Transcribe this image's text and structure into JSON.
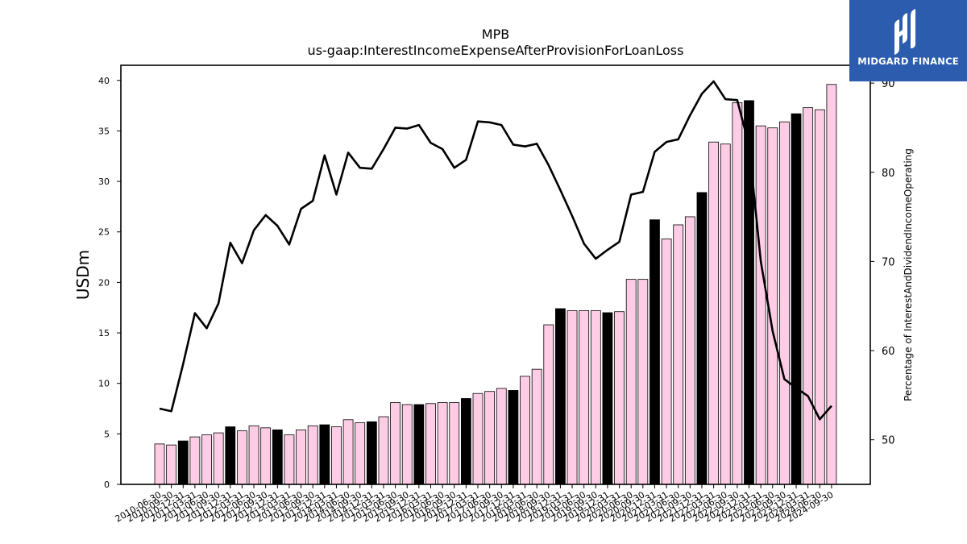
{
  "chart_data": {
    "type": "bar+line",
    "title": "MPB",
    "subtitle": "us-gaap:InterestIncomeExpenseAfterProvisionForLoanLoss",
    "ylabel": "USDm",
    "y2label": "Percentage of InterestAndDividendIncomeOperating",
    "ylim": [
      0,
      41.5
    ],
    "y2lim": [
      45,
      92
    ],
    "yticks": [
      0,
      5,
      10,
      15,
      20,
      25,
      30,
      35,
      40
    ],
    "y2ticks": [
      50,
      60,
      70,
      80,
      90
    ],
    "bar_color_normal": "#ffcce6",
    "bar_color_highlight": "#000000",
    "line_color": "#000000",
    "categories": [
      "2010-06-30",
      "2010-09-30",
      "2010-12-31",
      "2011-03-31",
      "2011-06-30",
      "2011-09-30",
      "2011-12-31",
      "2012-03-31",
      "2012-06-30",
      "2012-09-30",
      "2012-12-31",
      "2013-03-31",
      "2013-06-30",
      "2013-09-30",
      "2013-12-31",
      "2014-03-31",
      "2014-06-30",
      "2014-09-30",
      "2014-12-31",
      "2015-03-31",
      "2015-06-30",
      "2015-09-30",
      "2015-12-31",
      "2016-03-31",
      "2016-06-30",
      "2016-09-30",
      "2016-12-31",
      "2017-03-31",
      "2017-06-30",
      "2017-09-30",
      "2017-12-31",
      "2018-03-31",
      "2018-06-30",
      "2018-09-30",
      "2018-12-31",
      "2019-03-31",
      "2019-06-30",
      "2019-09-30",
      "2019-12-31",
      "2020-03-31",
      "2020-06-30",
      "2020-09-30",
      "2020-12-31",
      "2021-03-31",
      "2021-06-30",
      "2021-09-30",
      "2021-12-31",
      "2022-03-31",
      "2022-06-30",
      "2022-09-30",
      "2022-12-31",
      "2023-03-31",
      "2023-06-30",
      "2023-09-30",
      "2023-12-31",
      "2024-03-31",
      "2024-06-30",
      "2024-09-30"
    ],
    "values": [
      4.0,
      3.9,
      4.3,
      4.7,
      4.9,
      5.1,
      5.7,
      5.3,
      5.8,
      5.6,
      5.4,
      4.9,
      5.4,
      5.8,
      5.9,
      5.7,
      6.4,
      6.1,
      6.2,
      6.7,
      8.1,
      7.9,
      7.9,
      8.0,
      8.1,
      8.1,
      8.5,
      9.0,
      9.2,
      9.5,
      9.3,
      10.7,
      11.4,
      15.8,
      17.4,
      17.2,
      17.2,
      17.2,
      17.0,
      17.1,
      20.3,
      20.3,
      26.2,
      24.3,
      25.7,
      26.5,
      28.9,
      33.9,
      33.7,
      37.8,
      38.0,
      35.5,
      35.3,
      35.9,
      36.7,
      37.3,
      37.1,
      39.6
    ],
    "highlight": [
      false,
      false,
      true,
      false,
      false,
      false,
      true,
      false,
      false,
      false,
      true,
      false,
      false,
      false,
      true,
      false,
      false,
      false,
      true,
      false,
      false,
      false,
      true,
      false,
      false,
      false,
      true,
      false,
      false,
      false,
      true,
      false,
      false,
      false,
      true,
      false,
      false,
      false,
      true,
      false,
      false,
      false,
      true,
      false,
      false,
      false,
      true,
      false,
      false,
      false,
      true,
      false,
      false,
      false,
      true,
      false,
      false,
      false
    ],
    "line_values": [
      53.5,
      53.2,
      58.5,
      64.2,
      62.5,
      65.3,
      72.1,
      69.8,
      73.5,
      75.2,
      74.0,
      71.9,
      75.9,
      76.8,
      81.9,
      77.5,
      82.2,
      80.5,
      80.4,
      82.6,
      85.0,
      84.9,
      85.3,
      83.3,
      82.6,
      80.5,
      81.4,
      85.7,
      85.6,
      85.3,
      83.1,
      82.9,
      83.2,
      80.8,
      78.0,
      75.1,
      72.0,
      70.3,
      71.3,
      72.2,
      77.5,
      77.8,
      82.3,
      83.4,
      83.7,
      86.4,
      88.8,
      90.2,
      88.2,
      88.1,
      83.0,
      70.0,
      62.2,
      56.8,
      55.8,
      54.9,
      52.3,
      53.8
    ]
  },
  "logo": {
    "text": "MIDGARD FINANCE"
  }
}
